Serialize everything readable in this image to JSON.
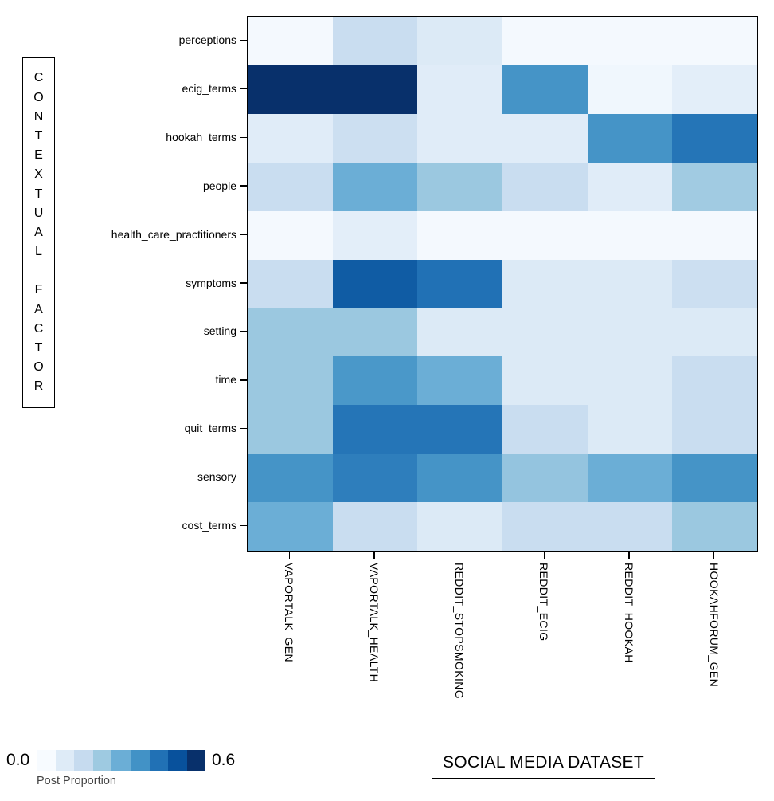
{
  "chart_data": {
    "type": "heatmap",
    "title": "",
    "ylabel": "CONTEXTUAL FACTOR",
    "xlabel": "SOCIAL MEDIA DATASET",
    "legend_label": "Post Proportion",
    "scale": {
      "min": 0.0,
      "max": 0.6,
      "min_label": "0.0",
      "max_label": "0.6"
    },
    "palette": [
      "#f7fbff",
      "#deebf7",
      "#c6dbef",
      "#9ecae1",
      "#6baed6",
      "#4292c6",
      "#2171b5",
      "#08519c",
      "#08306b"
    ],
    "rows": [
      "perceptions",
      "ecig_terms",
      "hookah_terms",
      "people",
      "health_care_practitioners",
      "symptoms",
      "setting",
      "time",
      "quit_terms",
      "sensory",
      "cost_terms"
    ],
    "columns": [
      "VAPORTALK_GEN",
      "VAPORTALK_HEALTH",
      "REDDIT_STOPSMOKING",
      "REDDIT_ECIG",
      "REDDIT_HOOKAH",
      "HOOKAHFORUM_GEN"
    ],
    "values": [
      [
        0.01,
        0.14,
        0.08,
        0.01,
        0.01,
        0.01
      ],
      [
        0.6,
        0.6,
        0.07,
        0.37,
        0.02,
        0.06
      ],
      [
        0.07,
        0.13,
        0.07,
        0.07,
        0.37,
        0.44
      ],
      [
        0.14,
        0.3,
        0.23,
        0.14,
        0.07,
        0.22
      ],
      [
        0.01,
        0.06,
        0.01,
        0.01,
        0.01,
        0.01
      ],
      [
        0.14,
        0.5,
        0.45,
        0.08,
        0.08,
        0.13
      ],
      [
        0.23,
        0.23,
        0.08,
        0.08,
        0.08,
        0.08
      ],
      [
        0.23,
        0.36,
        0.3,
        0.08,
        0.08,
        0.14
      ],
      [
        0.23,
        0.44,
        0.44,
        0.14,
        0.08,
        0.14
      ],
      [
        0.37,
        0.42,
        0.37,
        0.24,
        0.3,
        0.37
      ],
      [
        0.3,
        0.14,
        0.08,
        0.14,
        0.14,
        0.23
      ]
    ],
    "layout": {
      "legend_position": "bottom-left",
      "grid": false,
      "x_tick_rotation": 90
    }
  }
}
